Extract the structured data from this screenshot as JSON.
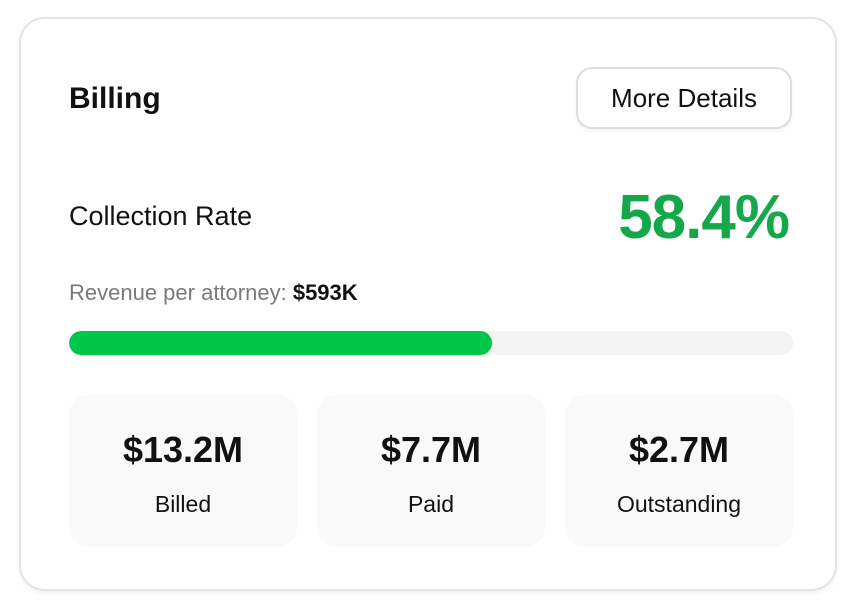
{
  "card": {
    "title": "Billing",
    "more_details_label": "More Details"
  },
  "collection": {
    "label": "Collection Rate",
    "rate_text": "58.4%",
    "rate_fraction": 0.584,
    "accent_color": "#14a84a",
    "bar_color": "#00c74a"
  },
  "revenue": {
    "label": "Revenue per attorney:",
    "value": "$593K"
  },
  "stats": [
    {
      "value": "$13.2M",
      "label": "Billed"
    },
    {
      "value": "$7.7M",
      "label": "Paid"
    },
    {
      "value": "$2.7M",
      "label": "Outstanding"
    }
  ]
}
